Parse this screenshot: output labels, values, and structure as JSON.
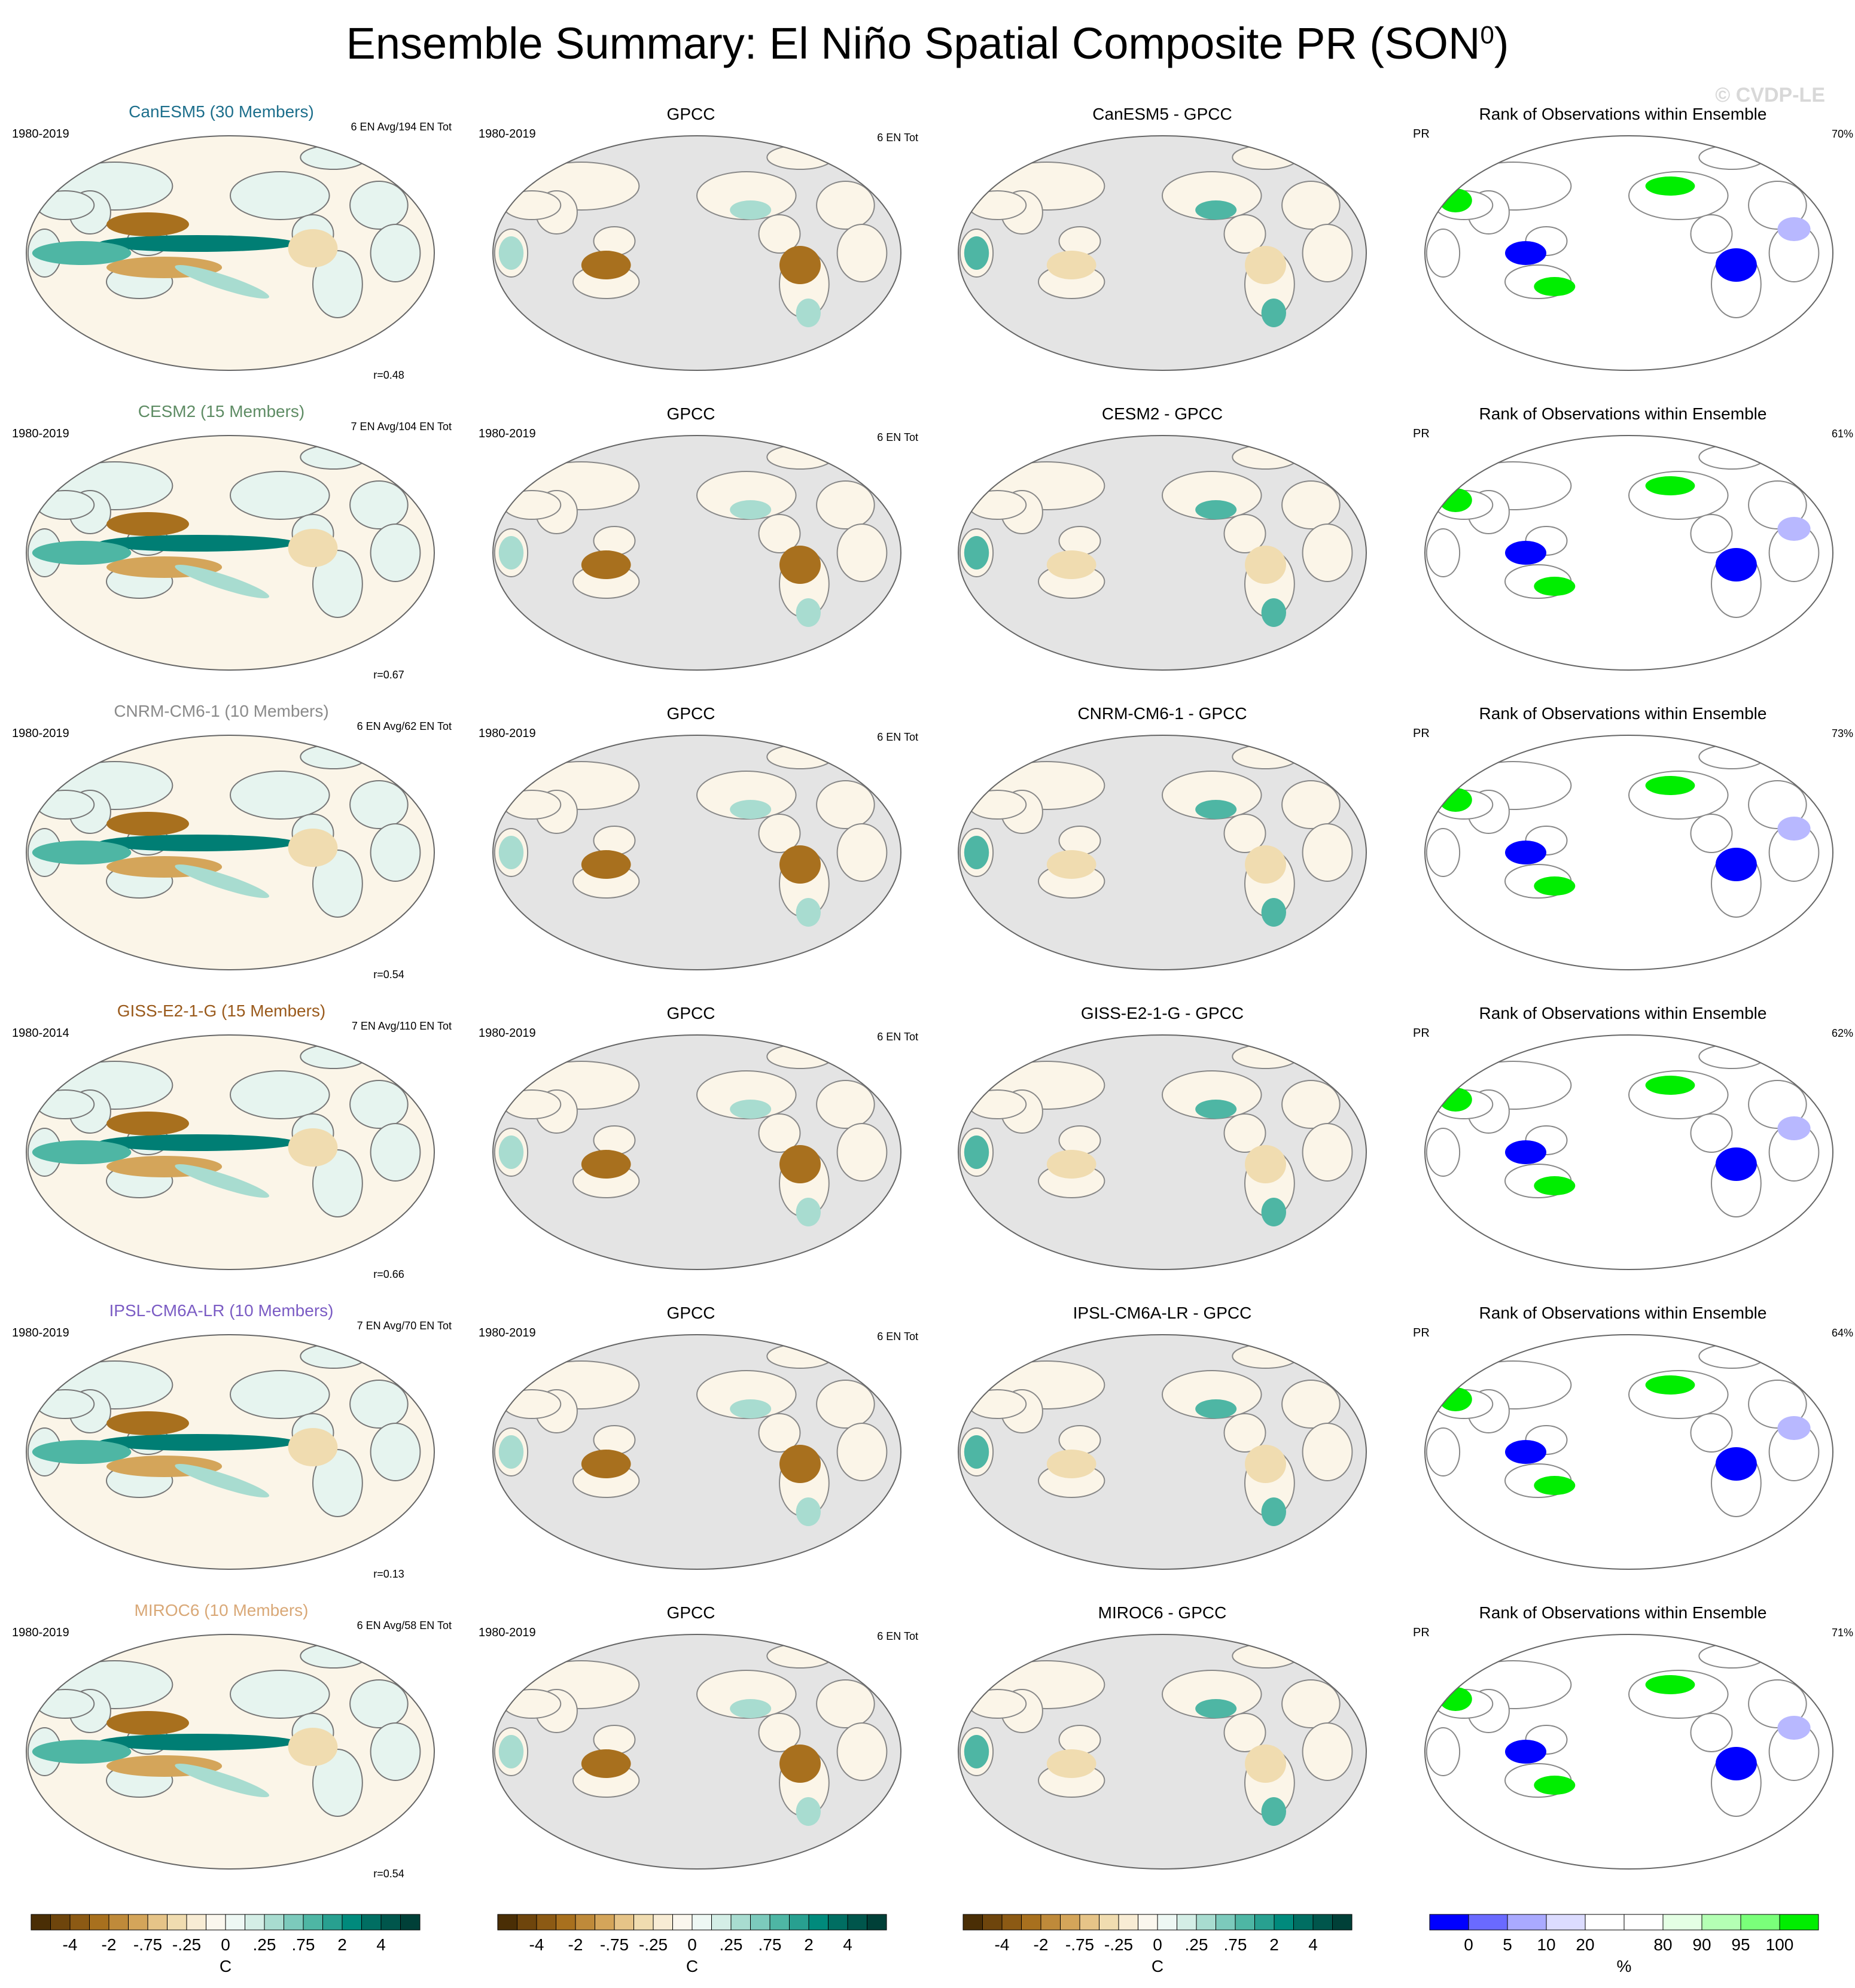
{
  "title": "Ensemble Summary: El Niño Spatial Composite PR (SON",
  "title_sup": "0",
  "title_close": ")",
  "credit": "© CVDP-LE",
  "colors": {
    "brown3": "#7a4d10",
    "brown2": "#a8701e",
    "brown1": "#d4a55a",
    "tan": "#f0dcb0",
    "cream": "#fbf5e8",
    "mint": "#e6f4ef",
    "teal1": "#a8dcd0",
    "teal2": "#4eb6a4",
    "teal3": "#007e74",
    "teal4": "#004d44",
    "ocean_gray": "#e4e4e4",
    "rank_blue": "#0000ff",
    "rank_lightblue": "#b8b8ff",
    "rank_green": "#00ee00",
    "rank_lightgreen": "#c8ffc8"
  },
  "chart_data": {
    "type": "heatmap",
    "rows": [
      {
        "model": "CanESM5 (30 Members)",
        "model_color": "#1d6f8c",
        "period": "1980-2019",
        "counts": "6 EN Avg/194 EN Tot",
        "r": "r=0.48",
        "obs_title": "GPCC",
        "obs_period": "1980-2019",
        "obs_counts": "6 EN Tot",
        "diff_title": "CanESM5 - GPCC",
        "rank_title": "Rank of Observations within Ensemble",
        "rank_var": "PR",
        "rank_pct": "70%"
      },
      {
        "model": "CESM2 (15 Members)",
        "model_color": "#5e8c64",
        "period": "1980-2019",
        "counts": "7 EN Avg/104 EN Tot",
        "r": "r=0.67",
        "obs_title": "GPCC",
        "obs_period": "1980-2019",
        "obs_counts": "6 EN Tot",
        "diff_title": "CESM2 - GPCC",
        "rank_title": "Rank of Observations within Ensemble",
        "rank_var": "PR",
        "rank_pct": "61%"
      },
      {
        "model": "CNRM-CM6-1 (10 Members)",
        "model_color": "#8a8a8a",
        "period": "1980-2019",
        "counts": "6 EN Avg/62 EN Tot",
        "r": "r=0.54",
        "obs_title": "GPCC",
        "obs_period": "1980-2019",
        "obs_counts": "6 EN Tot",
        "diff_title": "CNRM-CM6-1 - GPCC",
        "rank_title": "Rank of Observations within Ensemble",
        "rank_var": "PR",
        "rank_pct": "73%"
      },
      {
        "model": "GISS-E2-1-G (15 Members)",
        "model_color": "#9a5a1c",
        "period": "1980-2014",
        "counts": "7 EN Avg/110 EN Tot",
        "r": "r=0.66",
        "obs_title": "GPCC",
        "obs_period": "1980-2019",
        "obs_counts": "6 EN Tot",
        "diff_title": "GISS-E2-1-G - GPCC",
        "rank_title": "Rank of Observations within Ensemble",
        "rank_var": "PR",
        "rank_pct": "62%"
      },
      {
        "model": "IPSL-CM6A-LR (10 Members)",
        "model_color": "#7b5cc4",
        "period": "1980-2019",
        "counts": "7 EN Avg/70 EN Tot",
        "r": "r=0.13",
        "obs_title": "GPCC",
        "obs_period": "1980-2019",
        "obs_counts": "6 EN Tot",
        "diff_title": "IPSL-CM6A-LR - GPCC",
        "rank_title": "Rank of Observations within Ensemble",
        "rank_var": "PR",
        "rank_pct": "64%"
      },
      {
        "model": "MIROC6 (10 Members)",
        "model_color": "#d9a877",
        "period": "1980-2019",
        "counts": "6 EN Avg/58 EN Tot",
        "r": "r=0.54",
        "obs_title": "GPCC",
        "obs_period": "1980-2019",
        "obs_counts": "6 EN Tot",
        "diff_title": "MIROC6 - GPCC",
        "rank_title": "Rank of Observations within Ensemble",
        "rank_var": "PR",
        "rank_pct": "71%"
      }
    ],
    "colorbar_pr": {
      "colors": [
        "#4a2e05",
        "#6e450c",
        "#8c5a14",
        "#a8701e",
        "#bf8a3a",
        "#d4a55a",
        "#e6c488",
        "#f0dcb0",
        "#f8ecd4",
        "#fbf7ee",
        "#eef8f4",
        "#d4eee6",
        "#a8dcd0",
        "#7ccabc",
        "#4eb6a4",
        "#28a090",
        "#008a7c",
        "#006e62",
        "#00564c",
        "#004038"
      ],
      "ticks": [
        "-4",
        "-2",
        "-.75",
        "-.25",
        "0",
        ".25",
        ".75",
        "2",
        "4"
      ],
      "unit": "C"
    },
    "colorbar_rank": {
      "colors": [
        "#0000ff",
        "#6a6aff",
        "#aaaaff",
        "#dcdcff",
        "#ffffff",
        "#ffffff",
        "#e4ffe4",
        "#b4ffb4",
        "#7aff7a",
        "#00ee00"
      ],
      "ticks": [
        "0",
        "5",
        "10",
        "20",
        "80",
        "90",
        "95",
        "100"
      ],
      "unit": "%"
    }
  }
}
